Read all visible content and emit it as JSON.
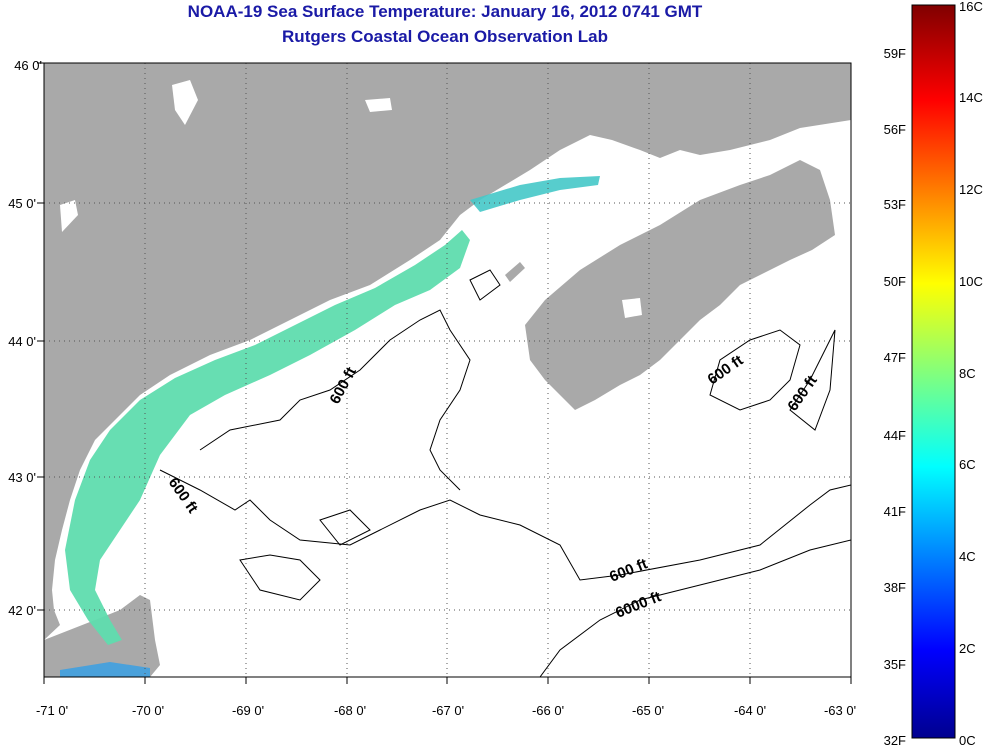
{
  "title": "NOAA-19 Sea Surface Temperature:  January 16, 2012 0741 GMT",
  "subtitle": "Rutgers Coastal Ocean Observation Lab",
  "map": {
    "lon_ticks": [
      "-71 0'",
      "-70 0'",
      "-69 0'",
      "-68 0'",
      "-67 0'",
      "-66 0'",
      "-65 0'",
      "-64 0'",
      "-63 0'"
    ],
    "lat_ticks": [
      "46 0'",
      "45 0'",
      "44 0'",
      "43 0'",
      "42 0'"
    ],
    "lon_range": [
      -71,
      -63
    ],
    "lat_range": [
      41.5,
      46
    ],
    "contour_labels": [
      "600 ft",
      "600 ft",
      "600 ft",
      "600 ft",
      "600 ft",
      "6000 ft"
    ],
    "land_color": "#a9a9a9",
    "ocean_color": "#ffffff",
    "sst_color_near_coast": "#4fd6a6"
  },
  "colorbar": {
    "celsius_labels": [
      "16C",
      "14C",
      "12C",
      "10C",
      "8C",
      "6C",
      "4C",
      "2C",
      "0C"
    ],
    "fahrenheit_labels": [
      "59F",
      "56F",
      "53F",
      "50F",
      "47F",
      "44F",
      "41F",
      "38F",
      "35F",
      "32F"
    ],
    "colors": [
      "#00008f",
      "#0000ff",
      "#0080ff",
      "#00ffff",
      "#80ff80",
      "#ffff00",
      "#ff8000",
      "#ff0000",
      "#800000"
    ]
  }
}
